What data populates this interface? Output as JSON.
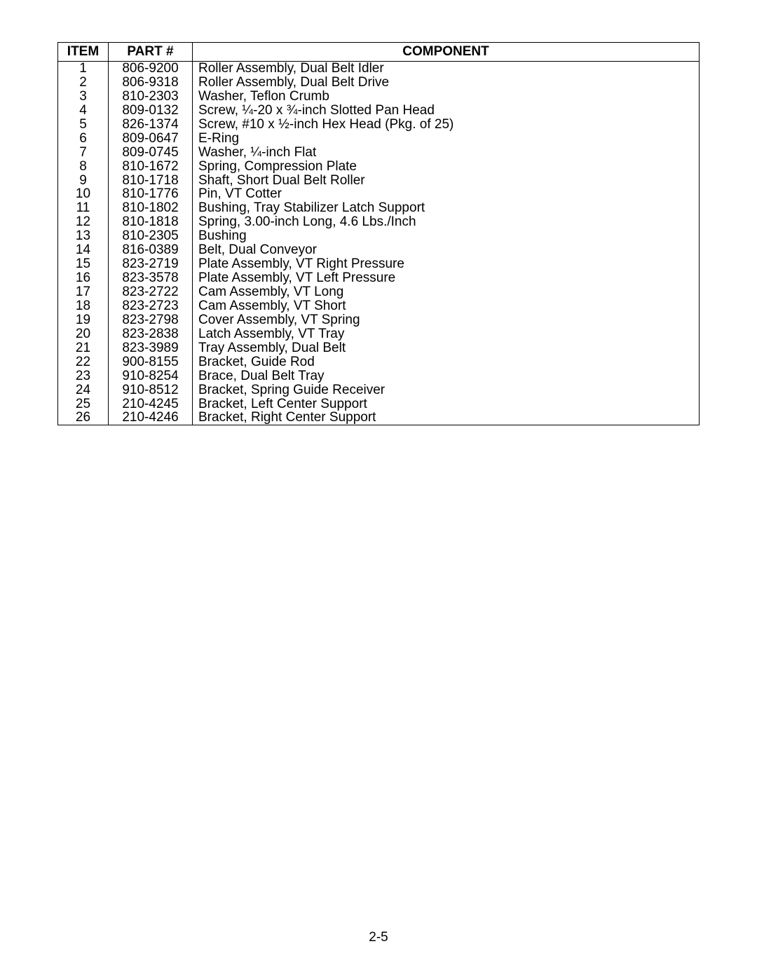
{
  "table": {
    "headers": {
      "item": "ITEM",
      "part": "PART #",
      "component": "COMPONENT"
    },
    "rows": [
      {
        "item": "1",
        "part": "806-9200",
        "component": "Roller Assembly, Dual Belt Idler"
      },
      {
        "item": "2",
        "part": "806-9318",
        "component": "Roller Assembly, Dual Belt Drive"
      },
      {
        "item": "3",
        "part": "810-2303",
        "component": "Washer, Teflon Crumb"
      },
      {
        "item": "4",
        "part": "809-0132",
        "component": "Screw, ¼-20 x ¾-inch Slotted Pan Head"
      },
      {
        "item": "5",
        "part": "826-1374",
        "component": "Screw, #10 x ½-inch Hex Head (Pkg. of 25)"
      },
      {
        "item": "6",
        "part": "809-0647",
        "component": "E-Ring"
      },
      {
        "item": "7",
        "part": "809-0745",
        "component": "Washer, ¼-inch Flat"
      },
      {
        "item": "8",
        "part": "810-1672",
        "component": "Spring, Compression Plate"
      },
      {
        "item": "9",
        "part": "810-1718",
        "component": "Shaft, Short Dual Belt Roller"
      },
      {
        "item": "10",
        "part": "810-1776",
        "component": "Pin, VT Cotter"
      },
      {
        "item": "11",
        "part": "810-1802",
        "component": "Bushing, Tray Stabilizer Latch Support"
      },
      {
        "item": "12",
        "part": "810-1818",
        "component": "Spring, 3.00-inch Long, 4.6 Lbs./Inch"
      },
      {
        "item": "13",
        "part": "810-2305",
        "component": "Bushing"
      },
      {
        "item": "14",
        "part": "816-0389",
        "component": "Belt, Dual Conveyor"
      },
      {
        "item": "15",
        "part": "823-2719",
        "component": "Plate Assembly, VT Right Pressure"
      },
      {
        "item": "16",
        "part": "823-3578",
        "component": "Plate Assembly, VT Left Pressure"
      },
      {
        "item": "17",
        "part": "823-2722",
        "component": "Cam Assembly, VT Long"
      },
      {
        "item": "18",
        "part": "823-2723",
        "component": "Cam Assembly, VT Short"
      },
      {
        "item": "19",
        "part": "823-2798",
        "component": "Cover Assembly, VT Spring"
      },
      {
        "item": "20",
        "part": "823-2838",
        "component": "Latch Assembly, VT Tray"
      },
      {
        "item": "21",
        "part": "823-3989",
        "component": "Tray Assembly, Dual Belt"
      },
      {
        "item": "22",
        "part": "900-8155",
        "component": "Bracket, Guide Rod"
      },
      {
        "item": "23",
        "part": "910-8254",
        "component": "Brace, Dual Belt Tray"
      },
      {
        "item": "24",
        "part": "910-8512",
        "component": "Bracket, Spring Guide Receiver"
      },
      {
        "item": "25",
        "part": "210-4245",
        "component": "Bracket, Left Center Support"
      },
      {
        "item": "26",
        "part": "210-4246",
        "component": "Bracket, Right Center Support"
      }
    ]
  },
  "page_number": "2-5",
  "style": {
    "font_size": 19,
    "border_color": "#000000",
    "background_color": "#ffffff",
    "text_color": "#000000"
  }
}
